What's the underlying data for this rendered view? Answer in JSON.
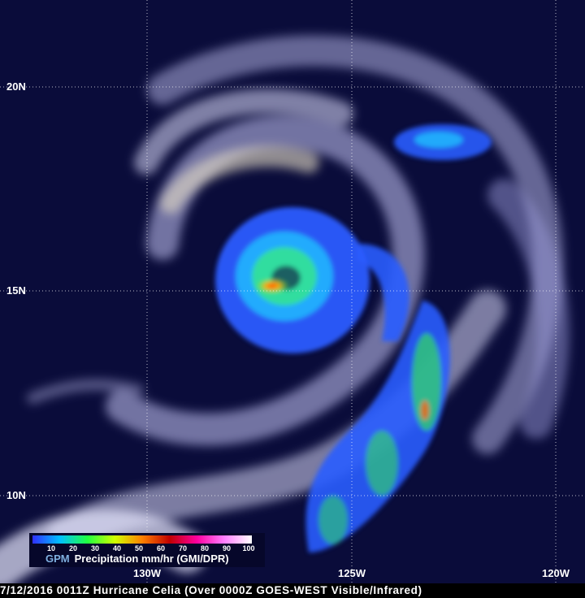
{
  "map": {
    "latitude_labels": [
      "20N",
      "15N",
      "10N"
    ],
    "longitude_labels": [
      "130W",
      "125W",
      "120W"
    ],
    "background_color": "#0a0c3a"
  },
  "legend": {
    "product": "GPM",
    "title": "Precipitation mm/hr (GMI/DPR)",
    "ticks": [
      "10",
      "20",
      "30",
      "40",
      "50",
      "60",
      "70",
      "80",
      "90",
      "100"
    ],
    "colors": [
      "#3030ff",
      "#00c0ff",
      "#20ff40",
      "#d0ff00",
      "#ff8000",
      "#c00000",
      "#ff00a0",
      "#ff80ff",
      "#ffffff"
    ]
  },
  "caption": "7/12/2016 0011Z Hurricane Celia (Over 0000Z GOES-WEST Visible/Infrared)"
}
